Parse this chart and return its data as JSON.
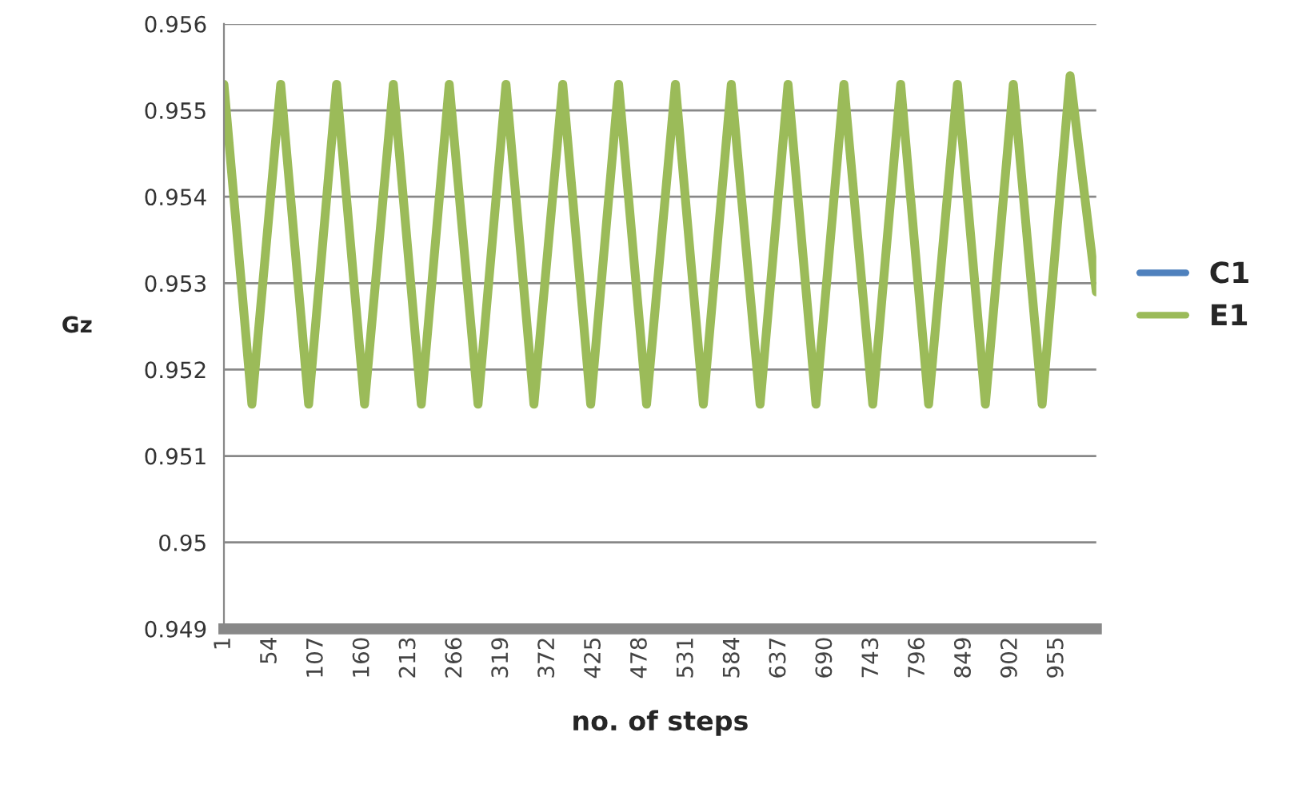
{
  "chart_data": {
    "type": "line",
    "xlabel": "no. of steps",
    "ylabel": "Gz",
    "xlim": [
      1,
      1000
    ],
    "xticks": [
      1,
      54,
      107,
      160,
      213,
      266,
      319,
      372,
      425,
      478,
      531,
      584,
      637,
      690,
      743,
      796,
      849,
      902,
      955
    ],
    "ylim": [
      0.949,
      0.956
    ],
    "yticks": [
      0.949,
      0.95,
      0.951,
      0.952,
      0.953,
      0.954,
      0.955,
      0.956
    ],
    "grid": "y",
    "legend": "right",
    "marker": "none",
    "line_style": "solid",
    "series": [
      {
        "name": "C1",
        "color": "#4f81bd",
        "values": [
          null
        ]
      },
      {
        "name": "E1",
        "color": "#9bbb59",
        "x": [
          1,
          33,
          66,
          98,
          130,
          162,
          195,
          227,
          259,
          292,
          324,
          356,
          389,
          421,
          453,
          485,
          518,
          550,
          582,
          615,
          647,
          679,
          711,
          744,
          776,
          808,
          841,
          873,
          905,
          938,
          970,
          1000
        ],
        "values": [
          0.9553,
          0.9516,
          0.9553,
          0.9516,
          0.9553,
          0.9516,
          0.9553,
          0.9516,
          0.9553,
          0.9516,
          0.9553,
          0.9516,
          0.9553,
          0.9516,
          0.9553,
          0.9516,
          0.9553,
          0.9516,
          0.9553,
          0.9516,
          0.9553,
          0.9516,
          0.9553,
          0.9516,
          0.9553,
          0.9516,
          0.9553,
          0.9516,
          0.9553,
          0.9516,
          0.9554,
          0.9529
        ]
      }
    ]
  }
}
